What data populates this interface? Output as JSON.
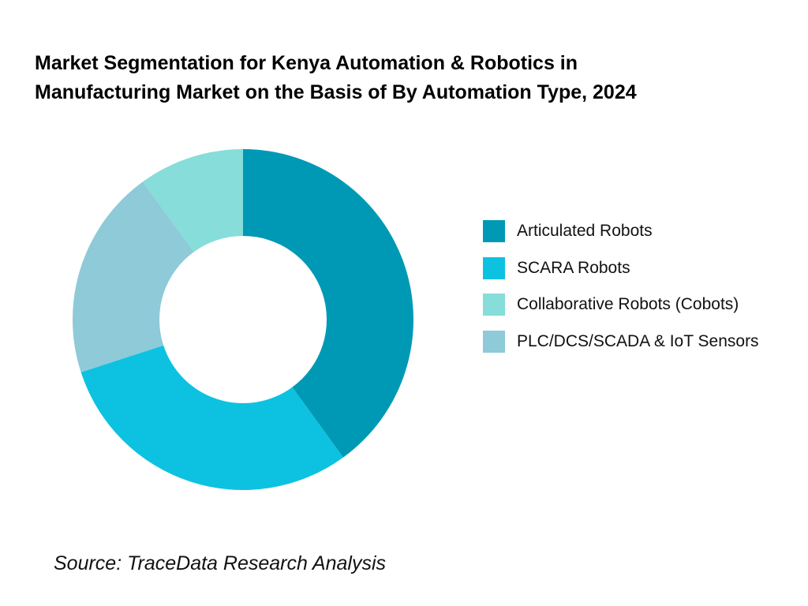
{
  "chart_data": {
    "type": "pie",
    "title_lines": [
      "Market Segmentation for Kenya Automation & Robotics in",
      "Manufacturing Market on the Basis of  By Automation Type, 2024"
    ],
    "categories": [
      "Articulated Robots",
      "SCARA Robots",
      "Collaborative Robots (Cobots)",
      "PLC/DCS/SCADA & IoT Sensors"
    ],
    "values": [
      40,
      30,
      10,
      20
    ],
    "plot_order": [
      0,
      1,
      3,
      2
    ],
    "colors": [
      "#0099b5",
      "#0dc2e0",
      "#86ddd9",
      "#8ecad8"
    ],
    "donut": true,
    "legend_position": "right"
  },
  "source": "Source: TraceData Research Analysis"
}
